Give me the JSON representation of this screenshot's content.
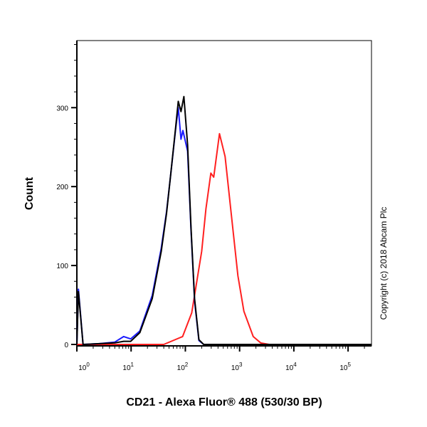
{
  "chart_data": {
    "type": "line",
    "xlabel": "CD21 - Alexa Fluor® 488 (530/30 BP)",
    "ylabel": "Count",
    "xscale": "log",
    "xlim": [
      1,
      270000
    ],
    "ylim": [
      0,
      385
    ],
    "x_ticks": [
      {
        "base": "10",
        "exp": "0",
        "value": 1
      },
      {
        "base": "10",
        "exp": "1",
        "value": 10
      },
      {
        "base": "10",
        "exp": "2",
        "value": 100
      },
      {
        "base": "10",
        "exp": "3",
        "value": 1000
      },
      {
        "base": "10",
        "exp": "4",
        "value": 10000
      },
      {
        "base": "10",
        "exp": "5",
        "value": 100000
      }
    ],
    "y_ticks": [
      "0",
      "100",
      "200",
      "300"
    ],
    "y_tick_values": [
      0,
      100,
      200,
      300
    ],
    "grid": false,
    "series": [
      {
        "color": "#1a1aff",
        "x": [
          1.0,
          1.07,
          1.3,
          2.6,
          5,
          7.3,
          9.8,
          14.5,
          24.5,
          36,
          45,
          53.5,
          66,
          74,
          83,
          90,
          110,
          127,
          148,
          178,
          218,
          270000
        ],
        "y": [
          0,
          70,
          0,
          1,
          3,
          10,
          7,
          17,
          62,
          122,
          168,
          214,
          272,
          300,
          260,
          271,
          245,
          145,
          55,
          5,
          0,
          0
        ]
      },
      {
        "color": "#000000",
        "x": [
          1.0,
          1.07,
          1.3,
          2.6,
          5,
          7.3,
          9.8,
          14.5,
          24.5,
          36,
          45,
          53.5,
          66,
          74,
          83,
          94,
          110,
          127,
          148,
          178,
          218,
          270000
        ],
        "y": [
          0,
          67,
          0,
          1,
          2,
          4,
          4,
          15,
          58,
          118,
          166,
          214,
          274,
          308,
          295,
          314,
          253,
          148,
          58,
          6,
          0,
          0
        ]
      },
      {
        "color": "#ff2020",
        "x": [
          1.0,
          40,
          89,
          131,
          200,
          240,
          295,
          333,
          426,
          540,
          730,
          930,
          1200,
          1780,
          2450,
          3500,
          270000
        ],
        "y": [
          0,
          0,
          10,
          40,
          118,
          172,
          217,
          212,
          267,
          238,
          154,
          87,
          42,
          10,
          2,
          0,
          0
        ]
      }
    ]
  },
  "copyright": "Copyright (c) 2018 Abcam Plc"
}
